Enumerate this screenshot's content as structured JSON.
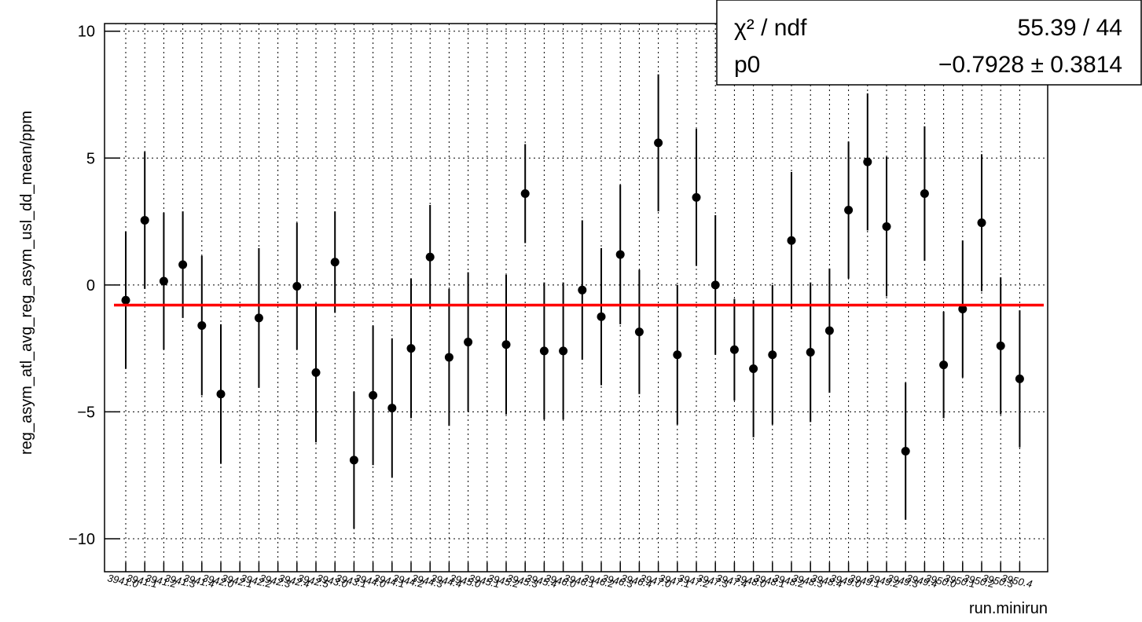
{
  "chart_data": {
    "type": "errorbar",
    "y_label": "reg_asym_atl_avg_reg_asym_usl_dd_mean/ppm",
    "x_label": "run.minirun",
    "categories": [
      "3941.0",
      "3941.1",
      "3941.2",
      "3941.3",
      "3941.4",
      "3942.0",
      "3942.1",
      "3942.2",
      "3942.3",
      "3942.4",
      "3942.5",
      "3943.0",
      "3943.1",
      "3944.0",
      "3944.1",
      "3944.2",
      "3944.3",
      "3944.4",
      "3945.0",
      "3945.1",
      "3945.2",
      "3945.3",
      "3945.4",
      "3946.0",
      "3946.1",
      "3946.2",
      "3946.3",
      "3946.4",
      "3947.0",
      "3947.1",
      "3947.2",
      "3947.3",
      "3947.4",
      "3948.0",
      "3948.1",
      "3948.2",
      "3948.3",
      "3948.4",
      "3949.0",
      "3949.1",
      "3949.2",
      "3949.3",
      "3949.4",
      "3950.0",
      "3950.1",
      "3950.2",
      "3950.3",
      "3950.4"
    ],
    "values": [
      -0.6,
      2.55,
      0.15,
      0.8,
      -1.6,
      -4.3,
      null,
      -1.3,
      null,
      -0.05,
      -3.45,
      0.9,
      -6.9,
      -4.35,
      -4.85,
      -2.5,
      1.1,
      -2.85,
      -2.25,
      null,
      -2.35,
      3.6,
      -2.6,
      -2.6,
      -0.2,
      -1.25,
      1.2,
      -1.85,
      5.6,
      -2.75,
      3.45,
      0.0,
      -2.55,
      -3.3,
      -2.75,
      1.75,
      -2.65,
      -1.8,
      2.95,
      4.85,
      2.3,
      -6.55,
      3.6,
      -3.15,
      -0.95,
      2.45,
      -2.4,
      -3.7
    ],
    "errors": [
      2.7,
      2.7,
      2.7,
      2.1,
      2.75,
      2.75,
      null,
      2.75,
      null,
      2.5,
      2.75,
      2.0,
      2.7,
      2.75,
      2.75,
      2.75,
      2.05,
      2.7,
      2.75,
      null,
      2.75,
      1.95,
      2.7,
      2.7,
      2.75,
      2.7,
      2.75,
      2.45,
      2.7,
      2.75,
      2.7,
      2.75,
      2.0,
      2.7,
      2.75,
      2.7,
      2.75,
      2.45,
      2.7,
      2.7,
      2.75,
      2.7,
      2.65,
      2.1,
      2.7,
      2.7,
      2.7,
      2.7
    ],
    "color": "#000000",
    "ylim": [
      -11.3,
      10.3
    ],
    "yticks": [
      {
        "value": -10,
        "label": "−10"
      },
      {
        "value": -5,
        "label": "−5"
      },
      0,
      5,
      10
    ],
    "grid": true,
    "fit": {
      "value": -0.7928,
      "error": 0.3814,
      "color": "#ff0000"
    },
    "stats": {
      "chi2_name": "χ² / ndf",
      "chi2_text": "55.39 / 44",
      "p0_name": "p0",
      "p0_text": "−0.7928 ± 0.3814"
    }
  }
}
